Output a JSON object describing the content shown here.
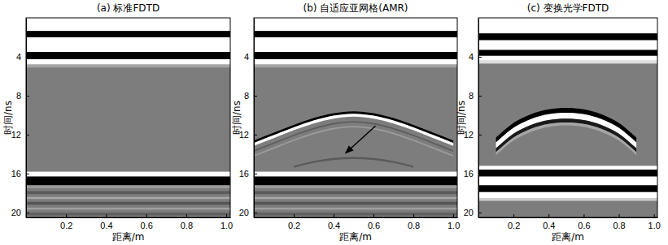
{
  "chart_data": [
    {
      "type": "radargram",
      "title": "(a) 标准FDTD",
      "x_label": "距离/m",
      "y_label": "时间/ns",
      "xlim": [
        0,
        1.02
      ],
      "ylim": [
        0,
        20.5
      ],
      "xticks": [
        0.2,
        0.4,
        0.6,
        0.8,
        {
          "value": 1.0,
          "label": "1.0"
        }
      ],
      "yticks": [
        4,
        8,
        12,
        16,
        20
      ],
      "color": "#7d7d7d",
      "bands": [
        {
          "t0": 0,
          "t1": 1.35,
          "color": "#ffffff"
        },
        {
          "t0": 1.35,
          "t1": 2.0,
          "color": "#000000"
        },
        {
          "t0": 2.0,
          "t1": 3.5,
          "color": "#ffffff"
        },
        {
          "t0": 3.5,
          "t1": 4.25,
          "color": "#000000"
        },
        {
          "t0": 4.25,
          "t1": 4.8,
          "color": "#ffffff"
        },
        {
          "t0": 4.8,
          "t1": 5.1,
          "color": "#a5a5a5"
        },
        {
          "t0": 15.8,
          "t1": 16.3,
          "color": "#ffffff"
        },
        {
          "t0": 16.3,
          "t1": 17.2,
          "color": "#000000"
        },
        {
          "t0": 17.2,
          "t1": 17.5,
          "color": "#9a9a9a"
        },
        {
          "t0": 17.8,
          "t1": 18.1,
          "color": "#5a5a5a"
        },
        {
          "t0": 18.4,
          "t1": 18.6,
          "color": "#a8a8a8"
        },
        {
          "t0": 18.9,
          "t1": 19.2,
          "color": "#555555"
        },
        {
          "t0": 19.5,
          "t1": 19.7,
          "color": "#a0a0a0"
        },
        {
          "t0": 20.0,
          "t1": 20.3,
          "color": "#606060"
        }
      ],
      "curves": []
    },
    {
      "type": "radargram",
      "title": "(b) 自适应亚网格(AMR)",
      "x_label": "距离/m",
      "y_label": "时间/ns",
      "xlim": [
        0,
        1.02
      ],
      "ylim": [
        0,
        20.5
      ],
      "xticks": [
        0.2,
        0.4,
        0.6,
        0.8,
        {
          "value": 1.0,
          "label": "1.0"
        }
      ],
      "yticks": [
        4,
        8,
        12,
        16,
        20
      ],
      "color": "#7d7d7d",
      "bands": [
        {
          "t0": 0,
          "t1": 1.35,
          "color": "#ffffff"
        },
        {
          "t0": 1.35,
          "t1": 2.0,
          "color": "#000000"
        },
        {
          "t0": 2.0,
          "t1": 3.5,
          "color": "#ffffff"
        },
        {
          "t0": 3.5,
          "t1": 4.25,
          "color": "#000000"
        },
        {
          "t0": 4.25,
          "t1": 4.8,
          "color": "#ffffff"
        },
        {
          "t0": 4.8,
          "t1": 5.1,
          "color": "#a5a5a5"
        },
        {
          "t0": 15.8,
          "t1": 16.3,
          "color": "#ffffff"
        },
        {
          "t0": 16.3,
          "t1": 17.2,
          "color": "#000000"
        },
        {
          "t0": 17.2,
          "t1": 17.5,
          "color": "#9a9a9a"
        },
        {
          "t0": 17.8,
          "t1": 18.1,
          "color": "#5a5a5a"
        },
        {
          "t0": 18.4,
          "t1": 18.6,
          "color": "#a8a8a8"
        },
        {
          "t0": 18.9,
          "t1": 19.2,
          "color": "#555555"
        },
        {
          "t0": 19.5,
          "t1": 19.7,
          "color": "#a0a0a0"
        },
        {
          "t0": 20.0,
          "t1": 20.3,
          "color": "#606060"
        }
      ],
      "curves": [
        {
          "color": "#000000",
          "x": [
            0,
            0.1,
            0.2,
            0.3,
            0.4,
            0.5,
            0.6,
            0.7,
            0.8,
            0.9,
            1.0
          ],
          "t0": [
            12.6,
            11.8,
            11.0,
            10.3,
            9.8,
            9.6,
            9.8,
            10.3,
            11.0,
            11.8,
            12.6
          ],
          "t1": [
            12.85,
            12.05,
            11.25,
            10.55,
            10.05,
            9.85,
            10.05,
            10.55,
            11.25,
            12.05,
            12.85
          ]
        },
        {
          "color": "#ffffff",
          "x": [
            0,
            0.1,
            0.2,
            0.3,
            0.4,
            0.5,
            0.6,
            0.7,
            0.8,
            0.9,
            1.0
          ],
          "t0": [
            12.85,
            12.05,
            11.25,
            10.55,
            10.05,
            9.85,
            10.05,
            10.55,
            11.25,
            12.05,
            12.85
          ],
          "t1": [
            13.15,
            12.35,
            11.55,
            10.85,
            10.35,
            10.15,
            10.35,
            10.85,
            11.55,
            12.35,
            13.15
          ]
        },
        {
          "color": "#5e5e5e",
          "x": [
            0,
            0.1,
            0.2,
            0.3,
            0.4,
            0.5,
            0.6,
            0.7,
            0.8,
            0.9,
            1.0
          ],
          "t0": [
            13.6,
            12.8,
            12.0,
            11.3,
            10.8,
            10.6,
            10.8,
            11.3,
            12.0,
            12.8,
            13.6
          ],
          "t1": [
            13.75,
            12.95,
            12.15,
            11.45,
            10.95,
            10.75,
            10.95,
            11.45,
            12.15,
            12.95,
            13.75
          ]
        },
        {
          "color": "#9c9c9c",
          "x": [
            0,
            0.1,
            0.2,
            0.3,
            0.4,
            0.5,
            0.6,
            0.7,
            0.8,
            0.9,
            1.0
          ],
          "t0": [
            14.1,
            13.3,
            12.5,
            11.8,
            11.3,
            11.1,
            11.3,
            11.8,
            12.5,
            13.3,
            14.1
          ],
          "t1": [
            14.25,
            13.45,
            12.65,
            11.95,
            11.45,
            11.25,
            11.45,
            11.95,
            12.65,
            13.45,
            14.25
          ]
        },
        {
          "color": "#5a5a5a",
          "x": [
            0.2,
            0.3,
            0.4,
            0.5,
            0.6,
            0.7,
            0.8
          ],
          "t0": [
            15.2,
            14.7,
            14.4,
            14.3,
            14.4,
            14.7,
            15.2
          ],
          "t1": [
            15.4,
            14.9,
            14.6,
            14.5,
            14.6,
            14.9,
            15.4
          ]
        }
      ],
      "arrow": {
        "x": [
          0.61,
          0.46
        ],
        "t": [
          11.1,
          13.9
        ]
      }
    },
    {
      "type": "radargram",
      "title": "(c) 变换光学FDTD",
      "x_label": "距离/m",
      "y_label": "时间/ns",
      "xlim": [
        0,
        1.02
      ],
      "ylim": [
        0,
        20.5
      ],
      "xticks": [
        0.2,
        0.4,
        0.6,
        0.8,
        {
          "value": 1.0,
          "label": "1.0"
        }
      ],
      "yticks": [
        4,
        8,
        12,
        16,
        20
      ],
      "color": "#7d7d7d",
      "bands": [
        {
          "t0": 0,
          "t1": 1.6,
          "color": "#ffffff"
        },
        {
          "t0": 1.6,
          "t1": 2.3,
          "color": "#000000"
        },
        {
          "t0": 2.3,
          "t1": 3.3,
          "color": "#ffffff"
        },
        {
          "t0": 3.3,
          "t1": 3.9,
          "color": "#000000"
        },
        {
          "t0": 3.9,
          "t1": 4.4,
          "color": "#ffffff"
        },
        {
          "t0": 4.4,
          "t1": 4.7,
          "color": "#dddddd"
        },
        {
          "t0": 15.2,
          "t1": 15.6,
          "color": "#ffffff"
        },
        {
          "t0": 15.6,
          "t1": 16.3,
          "color": "#000000"
        },
        {
          "t0": 16.3,
          "t1": 17.2,
          "color": "#ffffff"
        },
        {
          "t0": 17.2,
          "t1": 17.9,
          "color": "#000000"
        },
        {
          "t0": 17.9,
          "t1": 18.5,
          "color": "#ffffff"
        },
        {
          "t0": 18.5,
          "t1": 18.8,
          "color": "#cccccc"
        }
      ],
      "curves": [
        {
          "color": "#000000",
          "x": [
            0.1,
            0.15,
            0.2,
            0.25,
            0.3,
            0.4,
            0.5,
            0.6,
            0.7,
            0.75,
            0.8,
            0.85,
            0.9
          ],
          "t0": [
            12.3,
            11.5,
            10.8,
            10.3,
            9.9,
            9.4,
            9.25,
            9.4,
            9.9,
            10.3,
            10.8,
            11.5,
            12.3
          ],
          "t1": [
            12.8,
            12.0,
            11.3,
            10.8,
            10.4,
            9.9,
            9.75,
            9.9,
            10.4,
            10.8,
            11.3,
            12.0,
            12.8
          ]
        },
        {
          "color": "#ffffff",
          "x": [
            0.1,
            0.15,
            0.2,
            0.25,
            0.3,
            0.4,
            0.5,
            0.6,
            0.7,
            0.75,
            0.8,
            0.85,
            0.9
          ],
          "t0": [
            12.8,
            12.0,
            11.3,
            10.8,
            10.4,
            9.9,
            9.75,
            9.9,
            10.4,
            10.8,
            11.3,
            12.0,
            12.8
          ],
          "t1": [
            13.4,
            12.6,
            11.9,
            11.4,
            11.0,
            10.5,
            10.35,
            10.5,
            11.0,
            11.4,
            11.9,
            12.6,
            13.4
          ]
        },
        {
          "color": "#1a1a1a",
          "x": [
            0.1,
            0.15,
            0.2,
            0.25,
            0.3,
            0.4,
            0.5,
            0.6,
            0.7,
            0.75,
            0.8,
            0.85,
            0.9
          ],
          "t0": [
            13.4,
            12.6,
            11.9,
            11.4,
            11.0,
            10.5,
            10.35,
            10.5,
            11.0,
            11.4,
            11.9,
            12.6,
            13.4
          ],
          "t1": [
            13.8,
            13.0,
            12.3,
            11.8,
            11.4,
            10.9,
            10.75,
            10.9,
            11.4,
            11.8,
            12.3,
            13.0,
            13.8
          ]
        },
        {
          "color": "#a6a6a6",
          "x": [
            0.1,
            0.15,
            0.2,
            0.25,
            0.3,
            0.4,
            0.5,
            0.6,
            0.7,
            0.75,
            0.8,
            0.85,
            0.9
          ],
          "t0": [
            13.8,
            13.0,
            12.3,
            11.8,
            11.4,
            10.9,
            10.75,
            10.9,
            11.4,
            11.8,
            12.3,
            13.0,
            13.8
          ],
          "t1": [
            14.1,
            13.3,
            12.6,
            12.1,
            11.7,
            11.2,
            11.05,
            11.2,
            11.7,
            12.1,
            12.6,
            13.3,
            14.1
          ]
        }
      ]
    }
  ]
}
